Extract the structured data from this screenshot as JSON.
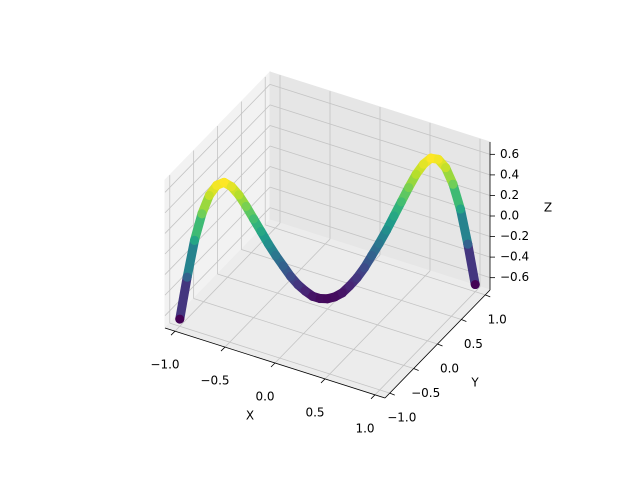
{
  "chart_data": {
    "type": "scatter3d",
    "colormap": "viridis",
    "x": [
      -1.0,
      -0.95,
      -0.9,
      -0.85,
      -0.8,
      -0.75,
      -0.7,
      -0.65,
      -0.6,
      -0.55,
      -0.5,
      -0.45,
      -0.4,
      -0.35,
      -0.3,
      -0.25,
      -0.2,
      -0.15,
      -0.1,
      -0.05,
      0.0,
      0.05,
      0.1,
      0.15,
      0.2,
      0.25,
      0.3,
      0.35,
      0.4,
      0.45,
      0.5,
      0.55,
      0.6,
      0.65,
      0.7,
      0.75,
      0.8,
      0.85,
      0.9,
      0.95,
      1.0
    ],
    "y": [
      -1.0,
      -0.95,
      -0.9,
      -0.85,
      -0.8,
      -0.75,
      -0.7,
      -0.65,
      -0.6,
      -0.55,
      -0.5,
      -0.45,
      -0.4,
      -0.35,
      -0.3,
      -0.25,
      -0.2,
      -0.15,
      -0.1,
      -0.05,
      0.0,
      0.05,
      0.1,
      0.15,
      0.2,
      0.25,
      0.3,
      0.35,
      0.4,
      0.45,
      0.5,
      0.55,
      0.6,
      0.65,
      0.7,
      0.75,
      0.8,
      0.85,
      0.9,
      0.95,
      1.0
    ],
    "z": [
      -0.65,
      -0.25,
      0.1,
      0.35,
      0.52,
      0.61,
      0.63,
      0.58,
      0.49,
      0.37,
      0.24,
      0.11,
      -0.02,
      -0.14,
      -0.25,
      -0.36,
      -0.45,
      -0.52,
      -0.58,
      -0.61,
      -0.62,
      -0.61,
      -0.58,
      -0.52,
      -0.45,
      -0.36,
      -0.25,
      -0.14,
      -0.02,
      0.11,
      0.24,
      0.37,
      0.49,
      0.58,
      0.63,
      0.61,
      0.52,
      0.35,
      0.1,
      -0.25,
      -0.65
    ],
    "xlabel": "X",
    "ylabel": "Y",
    "zlabel": "Z",
    "xlim": [
      -1.1,
      1.1
    ],
    "ylim": [
      -1.1,
      1.1
    ],
    "zlim": [
      -0.72,
      0.72
    ],
    "xticks": [
      {
        "value": -1.0,
        "label": "−1.0"
      },
      {
        "value": -0.5,
        "label": "−0.5"
      },
      {
        "value": 0.0,
        "label": "0.0"
      },
      {
        "value": 0.5,
        "label": "0.5"
      },
      {
        "value": 1.0,
        "label": "1.0"
      }
    ],
    "yticks": [
      {
        "value": -1.0,
        "label": "−1.0"
      },
      {
        "value": -0.5,
        "label": "−0.5"
      },
      {
        "value": 0.0,
        "label": "0.0"
      },
      {
        "value": 0.5,
        "label": "0.5"
      },
      {
        "value": 1.0,
        "label": "1.0"
      }
    ],
    "zticks": [
      {
        "value": -0.6,
        "label": "−0.6"
      },
      {
        "value": -0.4,
        "label": "−0.4"
      },
      {
        "value": -0.2,
        "label": "−0.2"
      },
      {
        "value": 0.0,
        "label": "0.0"
      },
      {
        "value": 0.2,
        "label": "0.2"
      },
      {
        "value": 0.4,
        "label": "0.4"
      },
      {
        "value": 0.6,
        "label": "0.6"
      }
    ],
    "grid": true
  }
}
